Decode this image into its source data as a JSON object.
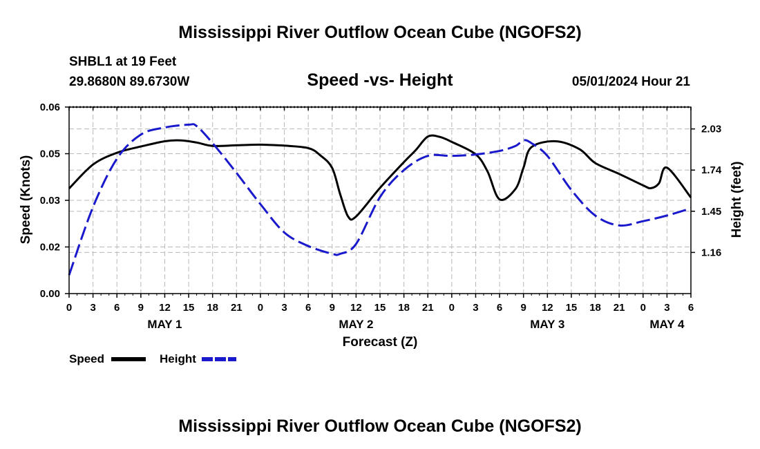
{
  "page_title": "Mississippi River Outflow Ocean Cube (NGOFS2)",
  "chart_data": {
    "type": "line",
    "title": "Mississippi River Outflow Ocean Cube (NGOFS2)",
    "subtitle": "Speed -vs- Height",
    "station": "SHBL1 at 19 Feet",
    "coords": "29.8680N  89.6730W",
    "datetime": "05/01/2024 Hour 21",
    "xlabel": "Forecast (Z)",
    "ylabel_left": "Speed (Knots)",
    "ylabel_right": "Height (feet)",
    "xlim": [
      0,
      78
    ],
    "ylim_left": [
      0.0,
      0.06
    ],
    "ylim_right": [
      0.87,
      2.184
    ],
    "left_ticks": [
      {
        "value": 0.0,
        "label": "0.00"
      },
      {
        "value": 0.015,
        "label": "0.02"
      },
      {
        "value": 0.03,
        "label": "0.03"
      },
      {
        "value": 0.045,
        "label": "0.05"
      },
      {
        "value": 0.06,
        "label": "0.06"
      }
    ],
    "right_ticks": [
      {
        "value": 1.16,
        "label": "1.16"
      },
      {
        "value": 1.45,
        "label": "1.45"
      },
      {
        "value": 1.74,
        "label": "1.74"
      },
      {
        "value": 2.03,
        "label": "2.03"
      }
    ],
    "x_ticks": [
      "0",
      "3",
      "6",
      "9",
      "12",
      "15",
      "18",
      "21",
      "0",
      "3",
      "6",
      "9",
      "12",
      "15",
      "18",
      "21",
      "0",
      "3",
      "6",
      "9",
      "12",
      "15",
      "18",
      "21",
      "0",
      "3",
      "6"
    ],
    "day_labels": [
      {
        "label": "MAY 1",
        "x": 12
      },
      {
        "label": "MAY 2",
        "x": 36
      },
      {
        "label": "MAY 3",
        "x": 60
      },
      {
        "label": "MAY 4",
        "x": 75
      }
    ],
    "series": [
      {
        "name": "Speed",
        "axis": "left",
        "color": "#000000",
        "style": "solid",
        "x": [
          0,
          3,
          6,
          9,
          12,
          14,
          16,
          18,
          21,
          24,
          27,
          30,
          31.5,
          33,
          34,
          35,
          36,
          39,
          42,
          43.5,
          45,
          46.5,
          48,
          51,
          52.5,
          54,
          56,
          57,
          58,
          61,
          64,
          66,
          69,
          72,
          73,
          74,
          75,
          78
        ],
        "y": [
          0.0338,
          0.0415,
          0.0453,
          0.0473,
          0.049,
          0.0493,
          0.0486,
          0.0475,
          0.0477,
          0.0479,
          0.0476,
          0.0468,
          0.0445,
          0.0404,
          0.032,
          0.0248,
          0.0248,
          0.034,
          0.0423,
          0.0462,
          0.0505,
          0.0504,
          0.0488,
          0.0448,
          0.0392,
          0.0303,
          0.0337,
          0.0405,
          0.0471,
          0.049,
          0.0465,
          0.042,
          0.0385,
          0.0348,
          0.0339,
          0.0355,
          0.0405,
          0.0309
        ]
      },
      {
        "name": "Height",
        "axis": "right",
        "color": "#1a1acc",
        "style": "dashed",
        "x": [
          0,
          3,
          6,
          9,
          12,
          15,
          16,
          18,
          21,
          24,
          27,
          30,
          33,
          34,
          36,
          39,
          42,
          45,
          48,
          51,
          54,
          56,
          57,
          58,
          60,
          63,
          66,
          69,
          72,
          75,
          78
        ],
        "y": [
          1.0,
          1.48,
          1.82,
          1.99,
          2.04,
          2.06,
          2.05,
          1.93,
          1.72,
          1.5,
          1.3,
          1.205,
          1.15,
          1.15,
          1.22,
          1.55,
          1.74,
          1.84,
          1.84,
          1.85,
          1.875,
          1.91,
          1.95,
          1.93,
          1.84,
          1.6,
          1.42,
          1.35,
          1.38,
          1.42,
          1.47
        ]
      }
    ],
    "legend": [
      {
        "name": "Speed",
        "color": "#000000",
        "style": "solid"
      },
      {
        "name": "Height",
        "color": "#1a1acc",
        "style": "dashed"
      }
    ],
    "legend_position": "bottom-left",
    "grid": true
  }
}
